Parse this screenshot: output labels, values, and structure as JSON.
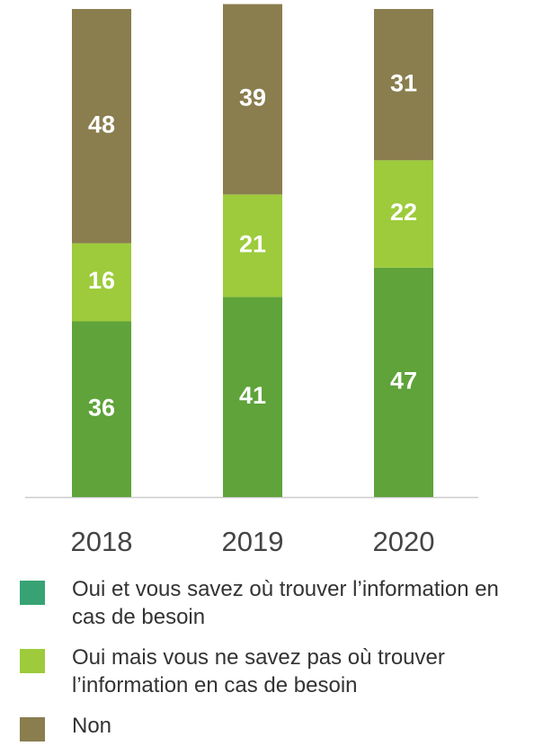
{
  "chart_data": {
    "type": "stacked_bar",
    "categories": [
      "2018",
      "2019",
      "2020"
    ],
    "series": [
      {
        "name": "Oui et vous savez où trouver l’information en cas de besoin",
        "color": "#5fa33a",
        "legend_color": "#37a374",
        "values": [
          36,
          41,
          47
        ]
      },
      {
        "name": "Oui mais vous ne savez pas où trouver l’information en cas de besoin",
        "color": "#9dcb3b",
        "legend_color": "#9dcb3b",
        "values": [
          16,
          21,
          22
        ]
      },
      {
        "name": "Non",
        "color": "#8a7d4e",
        "legend_color": "#8a7d4e",
        "values": [
          48,
          39,
          31
        ]
      }
    ],
    "ylim": [
      0,
      100
    ]
  }
}
